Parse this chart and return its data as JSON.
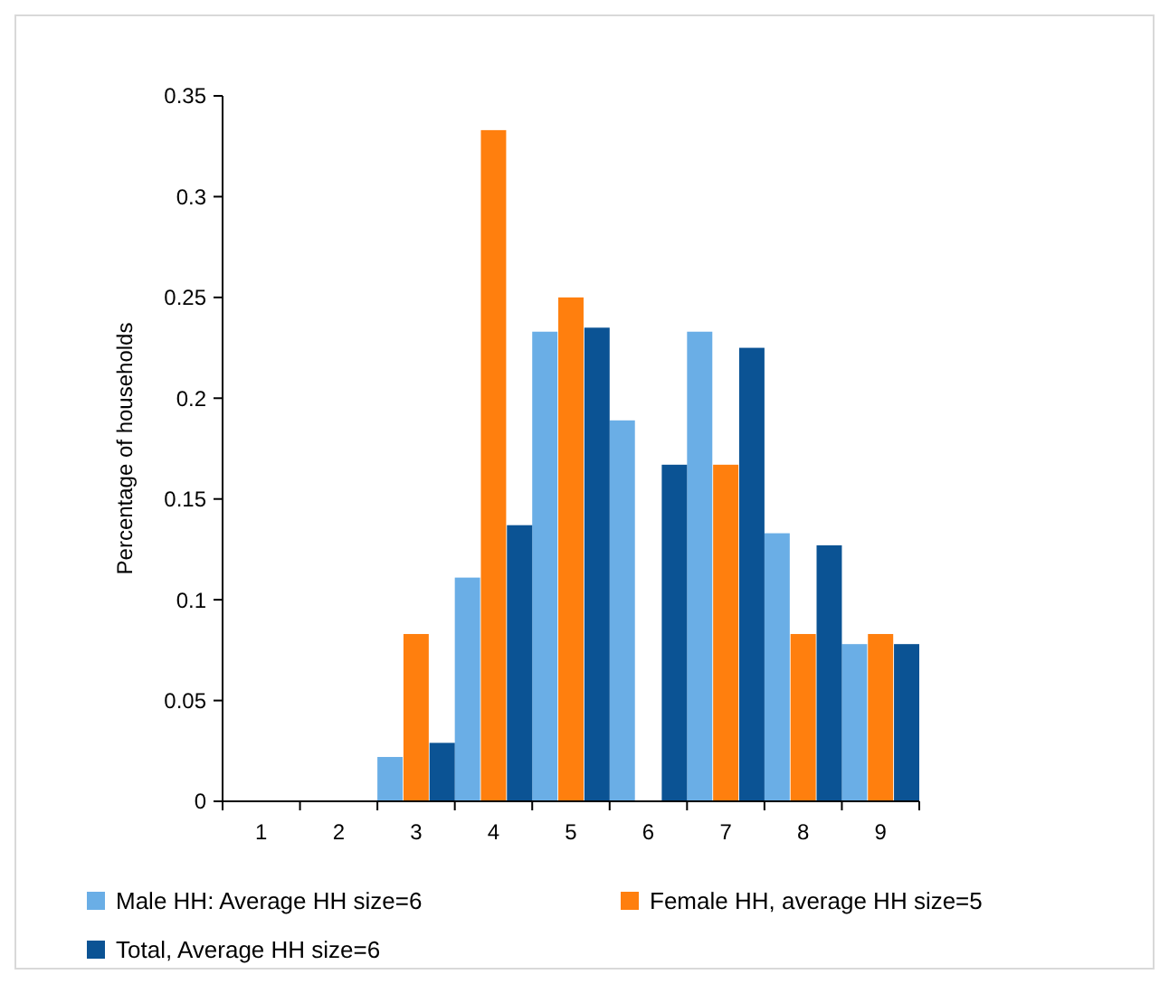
{
  "chart_data": {
    "type": "bar",
    "ylabel": "Percentage of households",
    "categories": [
      "1",
      "2",
      "3",
      "4",
      "5",
      "6",
      "7",
      "8",
      "9"
    ],
    "series": [
      {
        "name": "Male HH: Average HH size=6",
        "color": "#6aaee6",
        "values": [
          0,
          0,
          0.022,
          0.111,
          0.233,
          0.189,
          0.233,
          0.133,
          0.078
        ]
      },
      {
        "name": "Female HH, average HH size=5",
        "color": "#ff7f0e",
        "values": [
          0,
          0,
          0.083,
          0.333,
          0.25,
          0,
          0.167,
          0.083,
          0.083
        ]
      },
      {
        "name": "Total, Average HH size=6",
        "color": "#0b5394",
        "values": [
          0,
          0,
          0.029,
          0.137,
          0.235,
          0.167,
          0.225,
          0.127,
          0.078
        ]
      }
    ],
    "ylim": [
      0,
      0.35
    ],
    "yticks": [
      0,
      0.05,
      0.1,
      0.15,
      0.2,
      0.25,
      0.3,
      0.35
    ],
    "grid": false,
    "legend": "bottom"
  }
}
